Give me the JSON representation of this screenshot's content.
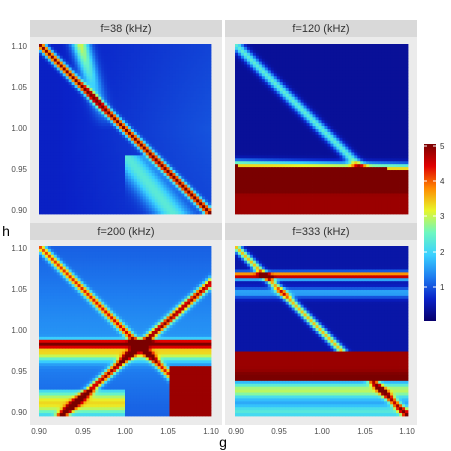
{
  "chart_data": {
    "type": "heatmap",
    "xlabel": "g",
    "ylabel": "h",
    "xlim": [
      0.9,
      1.1
    ],
    "ylim": [
      0.9,
      1.1
    ],
    "x_ticks": [
      "0.90",
      "0.95",
      "1.00",
      "1.05",
      "1.10"
    ],
    "y_ticks": [
      "0.90",
      "0.95",
      "1.00",
      "1.05",
      "1.10"
    ],
    "panels": [
      {
        "label": "f=38 (kHz)"
      },
      {
        "label": "f=120 (kHz)"
      },
      {
        "label": "f=200 (kHz)"
      },
      {
        "label": "f=333 (kHz)"
      }
    ],
    "colorbar": {
      "range": [
        0,
        5
      ],
      "ticks": [
        "1",
        "2",
        "3",
        "4",
        "5"
      ],
      "colors": [
        "#08006b",
        "#0a22c8",
        "#1f7ef0",
        "#3ad1ff",
        "#6ef7c0",
        "#e8f52a",
        "#ff8a00",
        "#e00000",
        "#7a0000"
      ]
    },
    "colors": {
      "panel_bg": "#ebebeb",
      "strip_bg": "#d9d9d9",
      "grid": "#ffffff"
    }
  }
}
